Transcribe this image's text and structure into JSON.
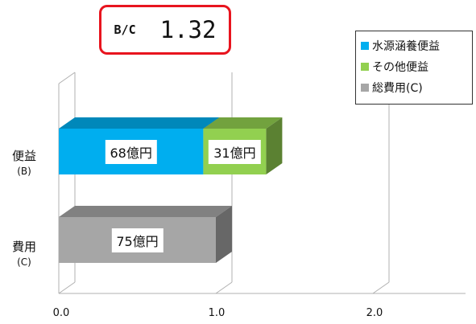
{
  "bc": {
    "label": "B/C",
    "value": "1.32"
  },
  "colors": {
    "water": "#00aeef",
    "other": "#92d050",
    "cost": "#a6a6a6"
  },
  "chart_data": {
    "type": "bar",
    "orientation": "horizontal",
    "stacked": true,
    "categories": [
      {
        "name": "便益",
        "sub": "(B)"
      },
      {
        "name": "費用",
        "sub": "(C)"
      }
    ],
    "series": [
      {
        "name": "水源涵養便益",
        "values": [
          0.92,
          0
        ]
      },
      {
        "name": "その他便益",
        "values": [
          0.4,
          0
        ]
      },
      {
        "name": "総費用(C)",
        "values": [
          0,
          1.0
        ]
      }
    ],
    "data_labels": [
      {
        "series": 0,
        "category": 0,
        "text": "68億円"
      },
      {
        "series": 1,
        "category": 0,
        "text": "31億円"
      },
      {
        "series": 2,
        "category": 1,
        "text": "75億円"
      }
    ],
    "xlim": [
      0,
      2.5
    ],
    "x_ticks": [
      "0.0",
      "1.0",
      "2.0"
    ],
    "legend_position": "top-right"
  }
}
